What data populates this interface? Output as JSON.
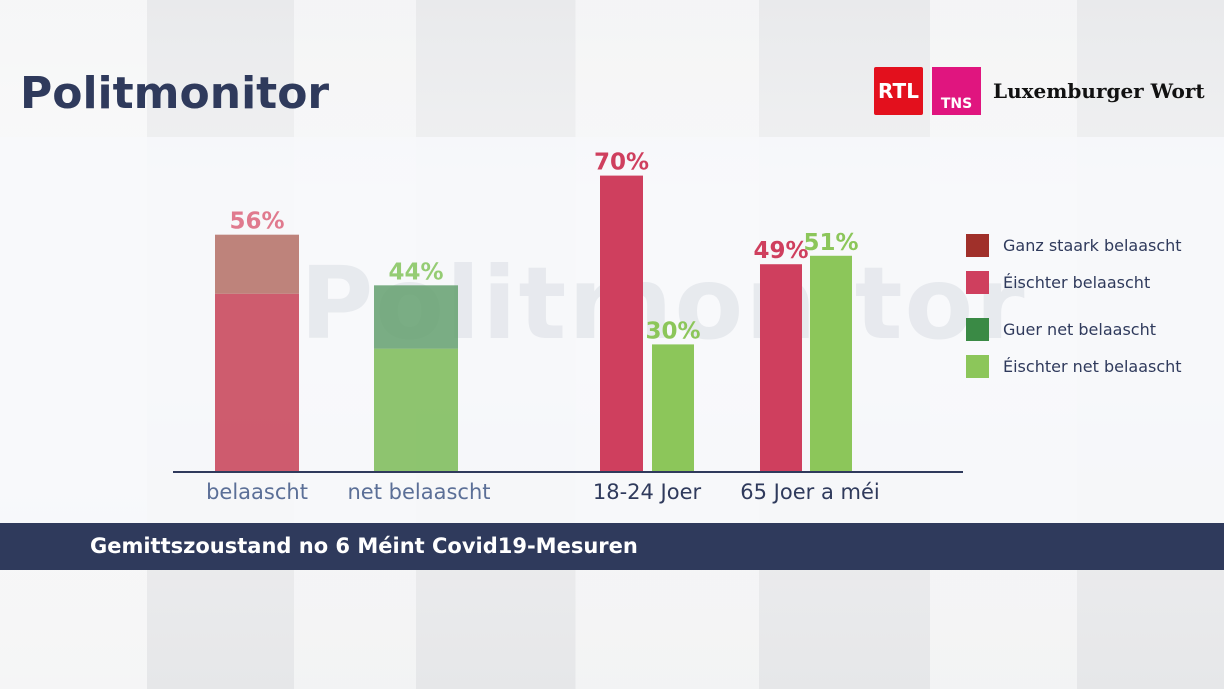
{
  "header": {
    "title": "Politmonitor",
    "logos": [
      "RTL",
      "TNS",
      "Luxemburger Wort"
    ]
  },
  "footer": {
    "caption": "Gemittszoustand no 6 Méint Covid19-Mesuren"
  },
  "watermark": "Politmonitor",
  "colors": {
    "ganz_staark": "#a0302a",
    "eischter_belaascht": "#cf3f5e",
    "guer_net": "#3a8a45",
    "eischter_net": "#8cc65a"
  },
  "chart_data": {
    "type": "bar",
    "title": "Gemittszoustand no 6 Méint Covid19-Mesuren",
    "categories": [
      "belaascht",
      "net belaascht",
      "18-24 Joer",
      "65 Joer a méi"
    ],
    "legend": [
      "Ganz staark belaascht",
      "Éischter belaascht",
      "Guer net belaascht",
      "Éischter net belaascht"
    ],
    "legend_position": "right",
    "ylim": [
      0,
      75
    ],
    "bars": [
      {
        "category": "belaascht",
        "label": "56%",
        "total": 56,
        "segments": [
          {
            "series": "Éischter belaascht",
            "value": 42
          },
          {
            "series": "Ganz staark belaascht",
            "value": 14
          }
        ]
      },
      {
        "category": "net belaascht",
        "label": "44%",
        "total": 44,
        "segments": [
          {
            "series": "Éischter net belaascht",
            "value": 29
          },
          {
            "series": "Guer net belaascht",
            "value": 15
          }
        ]
      },
      {
        "category": "18-24 Joer",
        "label": "70%",
        "total": 70,
        "group": "belaascht"
      },
      {
        "category": "18-24 Joer",
        "label": "30%",
        "total": 30,
        "group": "net belaascht"
      },
      {
        "category": "65 Joer a méi",
        "label": "49%",
        "total": 49,
        "group": "belaascht"
      },
      {
        "category": "65 Joer a méi",
        "label": "51%",
        "total": 51,
        "group": "net belaascht"
      }
    ]
  }
}
